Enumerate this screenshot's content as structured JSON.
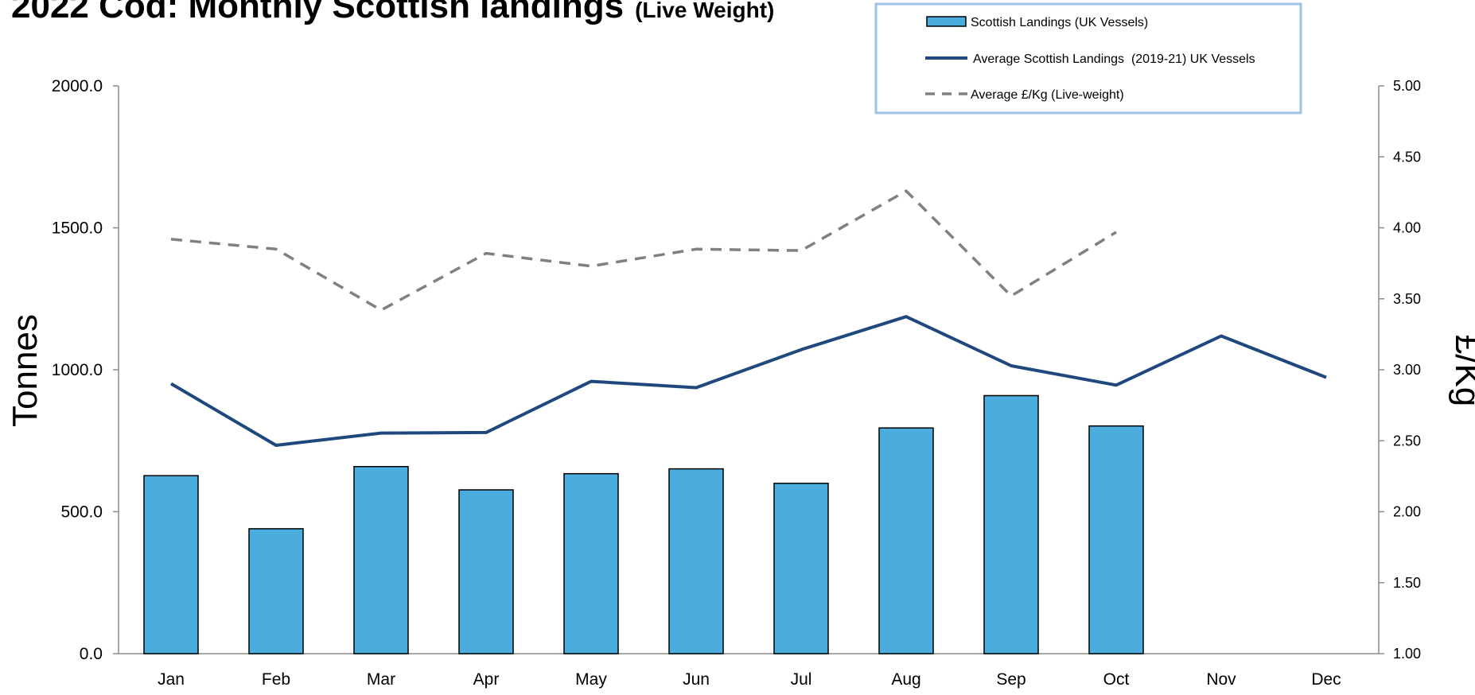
{
  "chart_data": {
    "type": "bar",
    "title": "2022 Cod: Monthly Scottish landings",
    "subtitle": "(Live Weight)",
    "categories": [
      "Jan",
      "Feb",
      "Mar",
      "Apr",
      "May",
      "Jun",
      "Jul",
      "Aug",
      "Sep",
      "Oct",
      "Nov",
      "Dec"
    ],
    "ylabel": "Tonnes",
    "y2label": "£/Kg",
    "ylim": [
      0,
      2000
    ],
    "y2lim": [
      1.0,
      5.0
    ],
    "yticks": [
      "0.0",
      "500.0",
      "1000.0",
      "1500.0",
      "2000.0"
    ],
    "y2ticks": [
      "1.00",
      "1.50",
      "2.00",
      "2.50",
      "3.00",
      "3.50",
      "4.00",
      "4.50",
      "5.00"
    ],
    "legend_position": "top-right",
    "grid": false,
    "series": [
      {
        "name": "Scottish Landings (UK Vessels)",
        "type": "bar",
        "axis": "left",
        "color": "#4BACDE",
        "values": [
          627,
          440,
          659,
          577,
          634,
          651,
          600,
          795,
          909,
          802,
          null,
          null
        ]
      },
      {
        "name": "Average Scottish Landings  (2019-21) UK Vessels",
        "type": "line",
        "axis": "left",
        "color": "#1F497D",
        "values": [
          951,
          734,
          777,
          779,
          959,
          937,
          1071,
          1187,
          1014,
          946,
          1119,
          973
        ]
      },
      {
        "name": "Average £/Kg (Live-weight)",
        "type": "line",
        "style": "dashed",
        "axis": "right",
        "color": "#808080",
        "values": [
          3.92,
          3.85,
          3.42,
          3.82,
          3.73,
          3.85,
          3.84,
          4.26,
          3.52,
          3.97,
          null,
          null
        ]
      }
    ]
  }
}
